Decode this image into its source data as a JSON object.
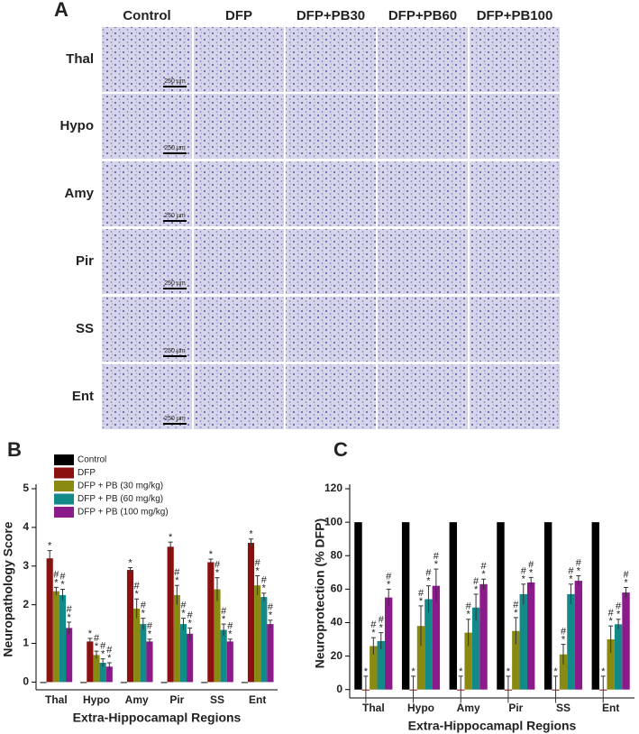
{
  "panel_a": {
    "label": "A",
    "columns": [
      "Control",
      "DFP",
      "DFP+PB30",
      "DFP+PB60",
      "DFP+PB100"
    ],
    "rows": [
      "Thal",
      "Hypo",
      "Amy",
      "Pir",
      "SS",
      "Ent"
    ],
    "scale_bar": "250 µm"
  },
  "chart_data": [
    {
      "type": "bar",
      "panel_label": "B",
      "ylabel": "Neuropathology Score",
      "xlabel": "Extra-Hippocamapl Regions",
      "categories": [
        "Thal",
        "Hypo",
        "Amy",
        "Pir",
        "SS",
        "Ent"
      ],
      "ylim": [
        -0.2,
        5
      ],
      "yticks": [
        0,
        1,
        2,
        3,
        4,
        5
      ],
      "legend": "upper left",
      "series": [
        {
          "name": "Control",
          "color": "#000000",
          "values": [
            0,
            0,
            0,
            0,
            0,
            0
          ]
        },
        {
          "name": "DFP",
          "color": "#8b1010",
          "values": [
            3.2,
            1.05,
            2.9,
            3.5,
            3.1,
            3.6
          ],
          "errors": [
            0.2,
            0.08,
            0.06,
            0.12,
            0.08,
            0.1
          ],
          "annotation": [
            "*"
          ]
        },
        {
          "name": "DFP + PB (30 mg/kg)",
          "color": "#8a8a12",
          "values": [
            2.35,
            0.7,
            1.9,
            2.25,
            2.4,
            2.5
          ],
          "errors": [
            0.1,
            0.1,
            0.25,
            0.25,
            0.3,
            0.25
          ],
          "annotation": [
            "#",
            "*"
          ]
        },
        {
          "name": "DFP + PB (60 mg/kg)",
          "color": "#128a8a",
          "values": [
            2.25,
            0.5,
            1.5,
            1.5,
            1.35,
            2.2
          ],
          "errors": [
            0.15,
            0.1,
            0.15,
            0.15,
            0.15,
            0.1
          ],
          "annotation": [
            "#",
            "*"
          ]
        },
        {
          "name": "DFP + PB (100 mg/kg)",
          "color": "#8b1a8b",
          "values": [
            1.4,
            0.4,
            1.05,
            1.25,
            1.05,
            1.5
          ],
          "errors": [
            0.15,
            0.1,
            0.06,
            0.15,
            0.06,
            0.1
          ],
          "annotation": [
            "#",
            "*"
          ]
        }
      ]
    },
    {
      "type": "bar",
      "panel_label": "C",
      "ylabel": "Neuroprotection (% DFP)",
      "xlabel": "Extra-Hippocamapl Regions",
      "categories": [
        "Thal",
        "Hypo",
        "Amy",
        "Pir",
        "SS",
        "Ent"
      ],
      "ylim": [
        -5,
        120
      ],
      "yticks": [
        0,
        20,
        40,
        60,
        80,
        100,
        120
      ],
      "series": [
        {
          "color": "#000000",
          "values": [
            100,
            100,
            100,
            100,
            100,
            100
          ]
        },
        {
          "color": "#8b1010",
          "values": [
            0,
            0,
            0,
            0,
            0,
            0
          ],
          "errors": [
            8,
            8,
            8,
            8,
            8,
            8
          ],
          "annotation": [
            "*"
          ]
        },
        {
          "color": "#8a8a12",
          "values": [
            26,
            38,
            34,
            35,
            21,
            30
          ],
          "errors": [
            5,
            12,
            8,
            8,
            6,
            8
          ],
          "annotation": [
            "#",
            "*"
          ]
        },
        {
          "color": "#128a8a",
          "values": [
            29,
            54,
            49,
            57,
            57,
            39
          ],
          "errors": [
            5,
            8,
            8,
            6,
            6,
            3
          ],
          "annotation": [
            "#",
            "*"
          ]
        },
        {
          "color": "#8b1a8b",
          "values": [
            55,
            62,
            63,
            64,
            65,
            58
          ],
          "errors": [
            5,
            10,
            3,
            3,
            3,
            3
          ],
          "annotation": [
            "#",
            "*"
          ]
        }
      ]
    }
  ]
}
